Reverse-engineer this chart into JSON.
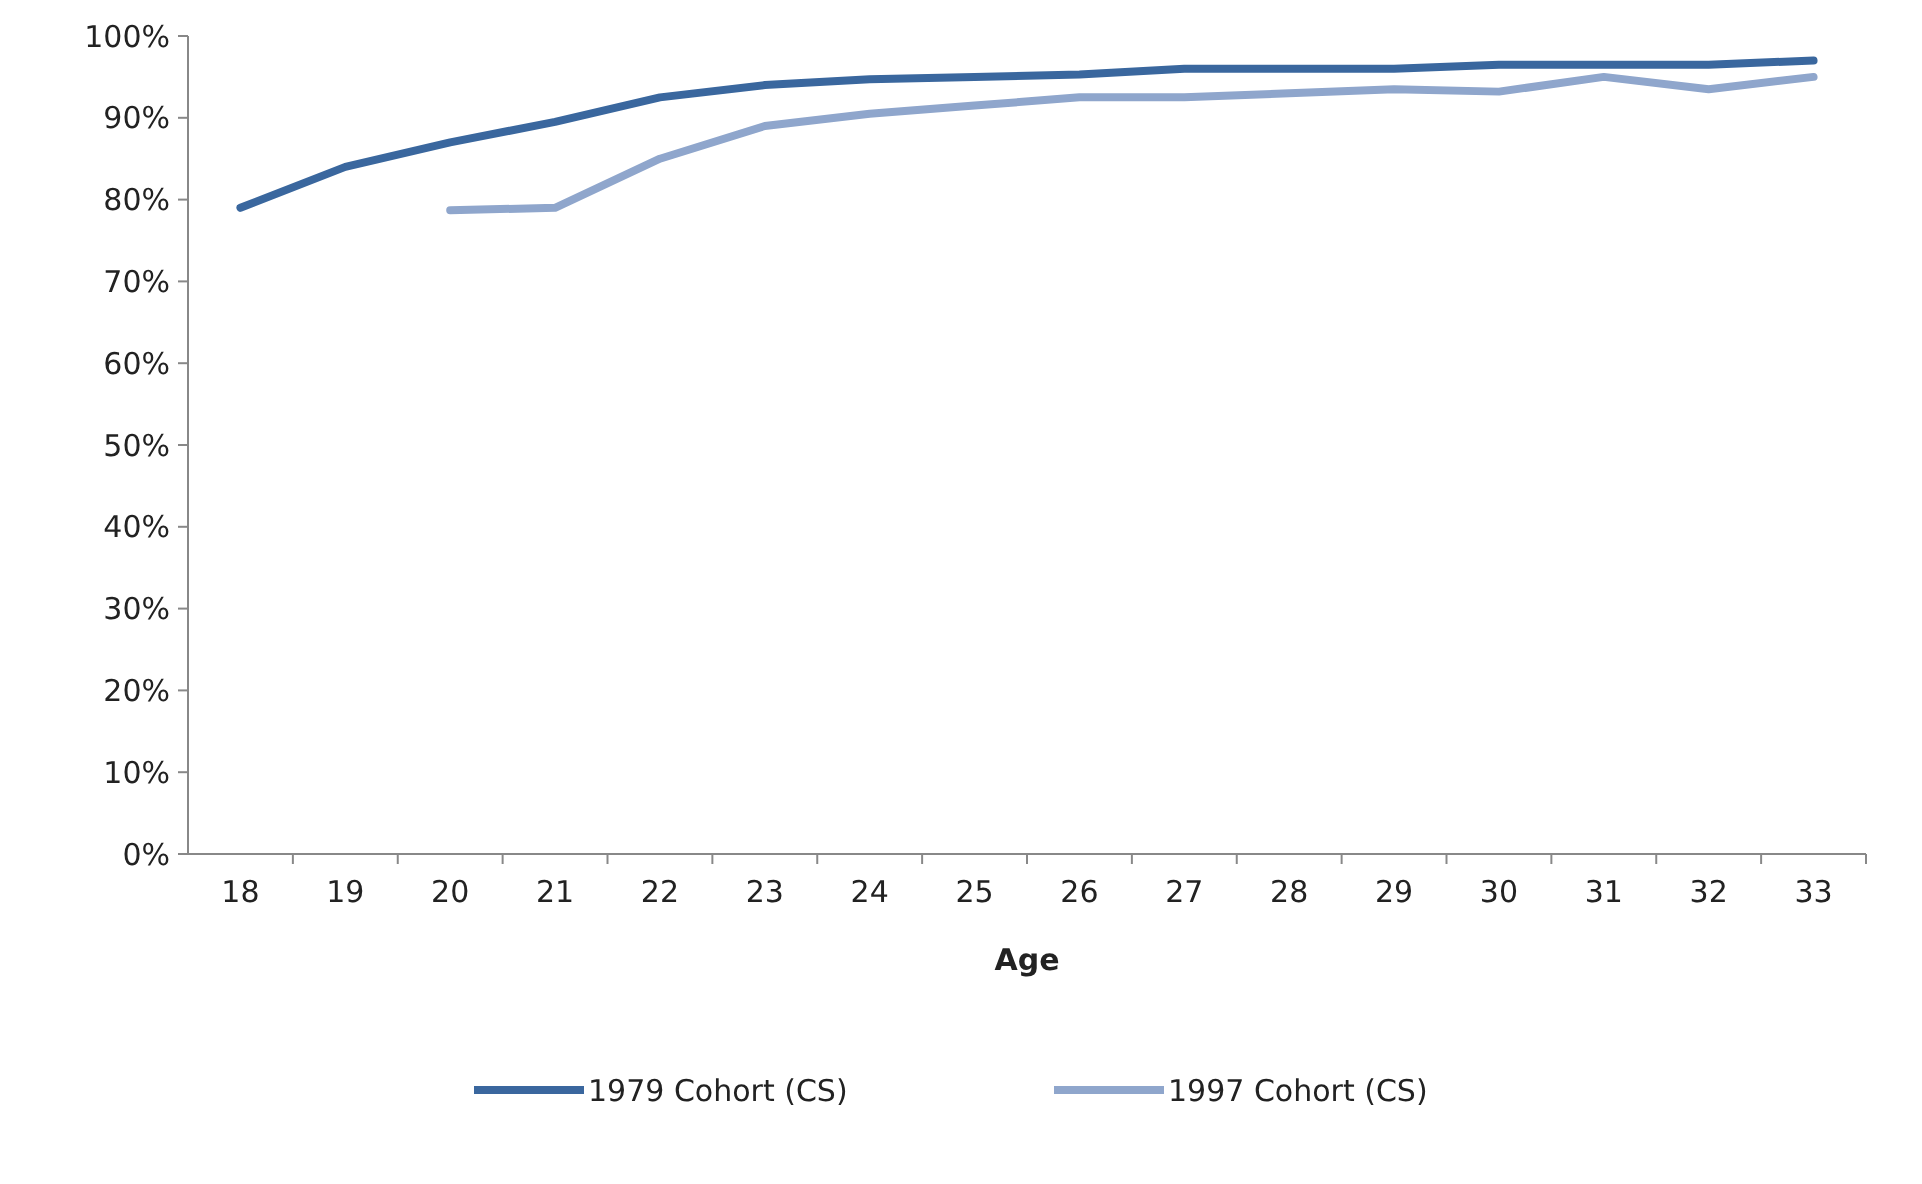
{
  "chart_data": {
    "type": "line",
    "xlabel": "Age",
    "categories": [
      "18",
      "19",
      "20",
      "21",
      "22",
      "23",
      "24",
      "25",
      "26",
      "27",
      "28",
      "29",
      "30",
      "31",
      "32",
      "33"
    ],
    "series": [
      {
        "name": "1979 Cohort (CS)",
        "color": "#3a679e",
        "values": [
          79,
          84,
          87,
          89.5,
          92.5,
          94,
          94.7,
          95,
          95.3,
          96,
          96,
          96,
          96.5,
          96.5,
          96.5,
          97
        ]
      },
      {
        "name": "1997 Cohort (CS)",
        "color": "#8fa6cc",
        "values": [
          null,
          null,
          78.7,
          79,
          85,
          89,
          90.5,
          91.5,
          92.5,
          92.5,
          93,
          93.5,
          93.2,
          95,
          93.5,
          95
        ]
      }
    ],
    "ylim": [
      0,
      100
    ],
    "yticks": [
      {
        "value": 0,
        "label": "0%"
      },
      {
        "value": 10,
        "label": "10%"
      },
      {
        "value": 20,
        "label": "20%"
      },
      {
        "value": 30,
        "label": "30%"
      },
      {
        "value": 40,
        "label": "40%"
      },
      {
        "value": 50,
        "label": "50%"
      },
      {
        "value": 60,
        "label": "60%"
      },
      {
        "value": 70,
        "label": "70%"
      },
      {
        "value": 80,
        "label": "80%"
      },
      {
        "value": 90,
        "label": "90%"
      },
      {
        "value": 100,
        "label": "100%"
      }
    ],
    "legend": "bottom",
    "line_style": "solid"
  }
}
